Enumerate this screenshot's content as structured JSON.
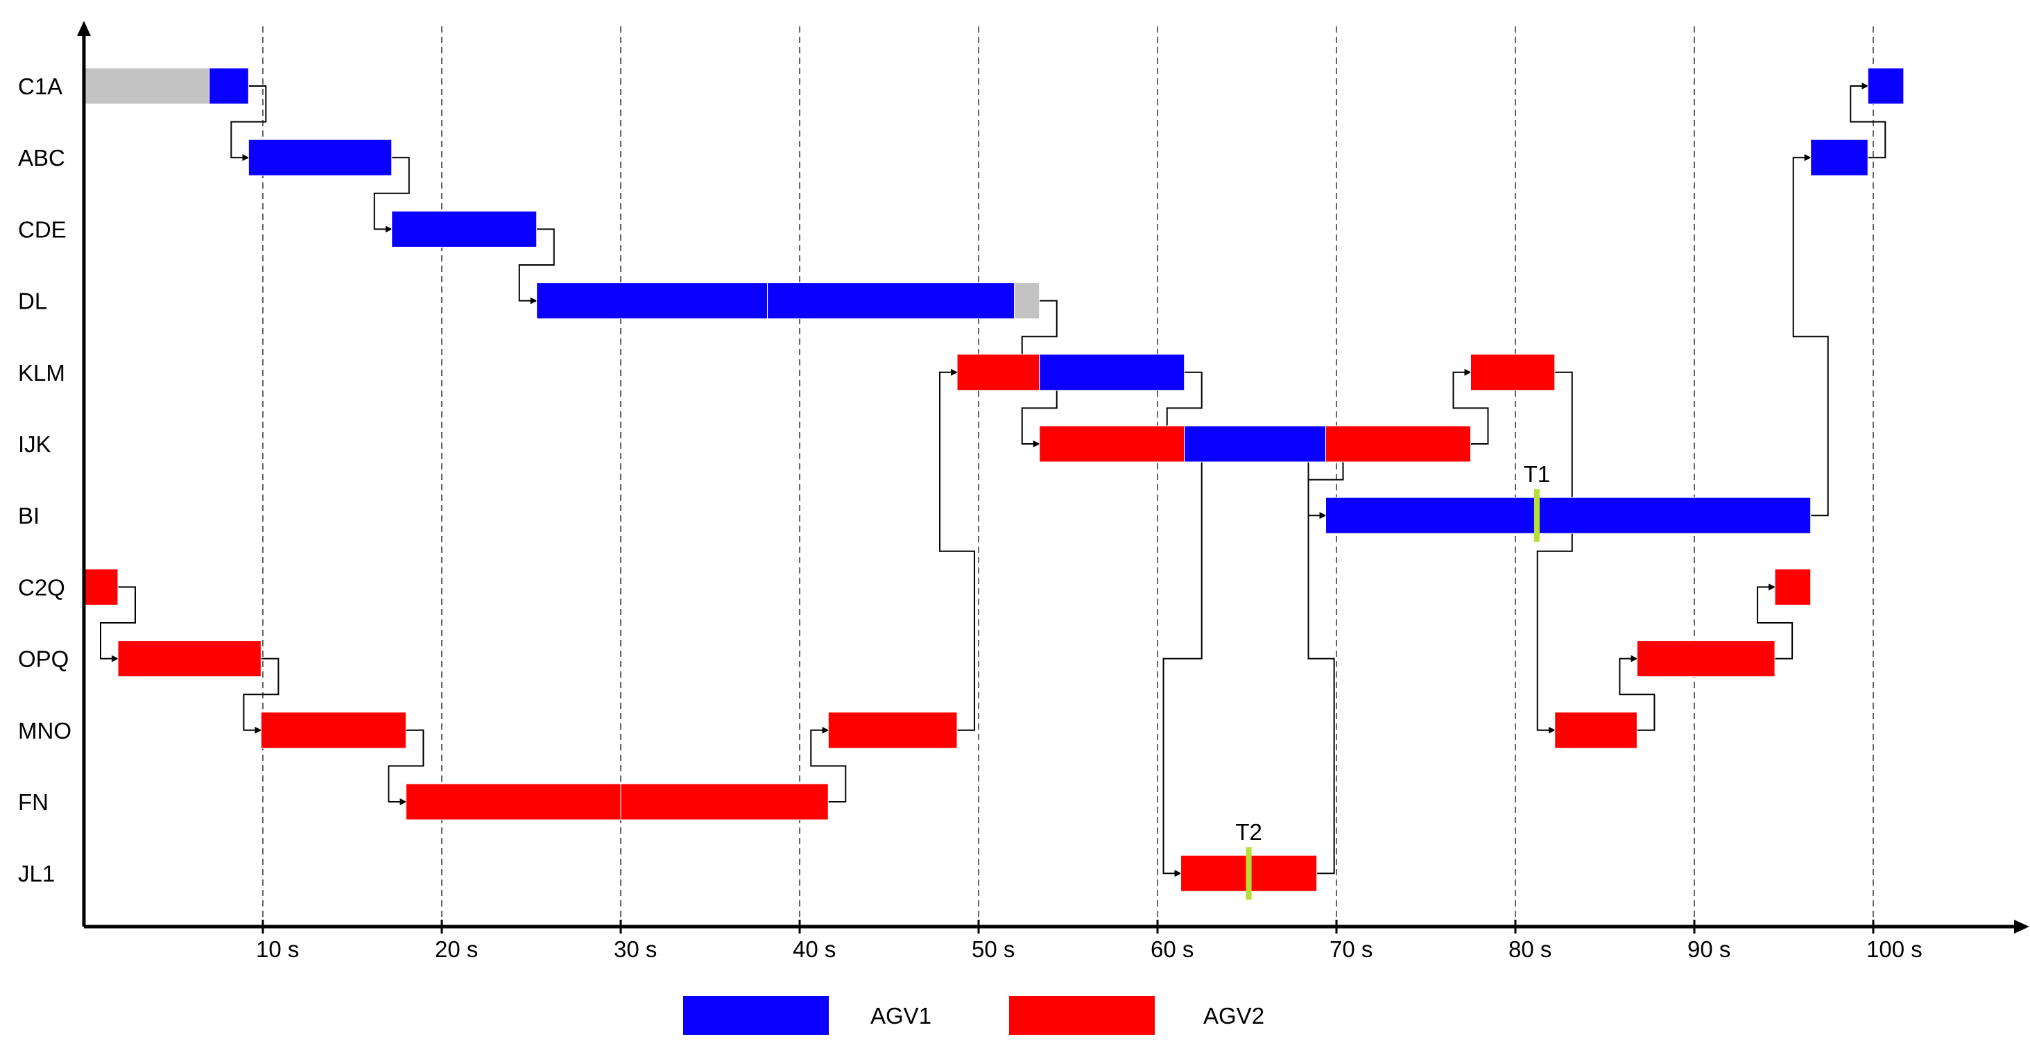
{
  "chart_data": {
    "type": "gantt",
    "title": "",
    "xlabel": "",
    "ylabel": "",
    "x_unit": "s",
    "xlim": [
      0,
      108
    ],
    "x_ticks": [
      10,
      20,
      30,
      40,
      50,
      60,
      70,
      80,
      90,
      100
    ],
    "x_tick_labels": [
      "10 s",
      "20 s",
      "30 s",
      "40 s",
      "50 s",
      "60 s",
      "70 s",
      "80 s",
      "90 s",
      "100 s"
    ],
    "grid": "vertical dashed at ticks",
    "rows": [
      "C1A",
      "ABC",
      "CDE",
      "DL",
      "KLM",
      "IJK",
      "BI",
      "C2Q",
      "OPQ",
      "MNO",
      "FN",
      "JL1"
    ],
    "colors": {
      "AGV1": "#0a00ff",
      "AGV2": "#ff0000",
      "idle": "#c3c3c3",
      "marker": "#b5e033"
    },
    "legend": {
      "position": "bottom-center",
      "items": [
        {
          "name": "AGV1",
          "color": "#0a00ff"
        },
        {
          "name": "AGV2",
          "color": "#ff0000"
        }
      ]
    },
    "bars": [
      {
        "row": "C1A",
        "agent": "idle",
        "start": 0,
        "end": 7.0
      },
      {
        "row": "C1A",
        "agent": "AGV1",
        "start": 7.0,
        "end": 9.2
      },
      {
        "row": "ABC",
        "agent": "AGV1",
        "start": 9.2,
        "end": 17.2
      },
      {
        "row": "CDE",
        "agent": "AGV1",
        "start": 17.2,
        "end": 25.3
      },
      {
        "row": "DL",
        "agent": "AGV1",
        "start": 25.3,
        "end": 38.2
      },
      {
        "row": "DL",
        "agent": "AGV1",
        "start": 38.2,
        "end": 52.0
      },
      {
        "row": "DL",
        "agent": "idle",
        "start": 52.0,
        "end": 53.4
      },
      {
        "row": "KLM",
        "agent": "AGV2",
        "start": 48.8,
        "end": 53.4
      },
      {
        "row": "KLM",
        "agent": "AGV1",
        "start": 53.4,
        "end": 61.5
      },
      {
        "row": "IJK",
        "agent": "AGV2",
        "start": 53.4,
        "end": 61.5
      },
      {
        "row": "IJK",
        "agent": "AGV1",
        "start": 61.5,
        "end": 69.4
      },
      {
        "row": "IJK",
        "agent": "AGV2",
        "start": 69.4,
        "end": 77.5
      },
      {
        "row": "KLM",
        "agent": "AGV2",
        "start": 77.5,
        "end": 82.2
      },
      {
        "row": "BI",
        "agent": "AGV1",
        "start": 69.4,
        "end": 96.5
      },
      {
        "row": "ABC",
        "agent": "AGV1",
        "start": 96.5,
        "end": 99.7
      },
      {
        "row": "C1A",
        "agent": "AGV1",
        "start": 99.7,
        "end": 101.7
      },
      {
        "row": "C2Q",
        "agent": "AGV2",
        "start": 0,
        "end": 1.9
      },
      {
        "row": "OPQ",
        "agent": "AGV2",
        "start": 1.9,
        "end": 9.9
      },
      {
        "row": "MNO",
        "agent": "AGV2",
        "start": 9.9,
        "end": 18.0
      },
      {
        "row": "FN",
        "agent": "AGV2",
        "start": 18.0,
        "end": 30.0
      },
      {
        "row": "FN",
        "agent": "AGV2",
        "start": 30.0,
        "end": 41.6
      },
      {
        "row": "MNO",
        "agent": "AGV2",
        "start": 41.6,
        "end": 48.8
      },
      {
        "row": "JL1",
        "agent": "AGV2",
        "start": 61.3,
        "end": 68.9
      },
      {
        "row": "MNO",
        "agent": "AGV2",
        "start": 82.2,
        "end": 86.8
      },
      {
        "row": "OPQ",
        "agent": "AGV2",
        "start": 86.8,
        "end": 94.5
      },
      {
        "row": "C2Q",
        "agent": "AGV2",
        "start": 94.5,
        "end": 96.5
      }
    ],
    "transitions": [
      {
        "from_row": "C1A",
        "from": 9.2,
        "to_row": "ABC",
        "to": 9.2
      },
      {
        "from_row": "ABC",
        "from": 17.2,
        "to_row": "CDE",
        "to": 17.2
      },
      {
        "from_row": "CDE",
        "from": 25.3,
        "to_row": "DL",
        "to": 25.3
      },
      {
        "from_row": "DL",
        "from": 53.4,
        "to_row": "KLM",
        "to": 53.4
      },
      {
        "from_row": "KLM",
        "from": 61.5,
        "to_row": "IJK",
        "to": 61.5
      },
      {
        "from_row": "IJK",
        "from": 69.4,
        "to_row": "BI",
        "to": 69.4
      },
      {
        "from_row": "BI",
        "from": 96.5,
        "to_row": "ABC",
        "to": 96.5
      },
      {
        "from_row": "ABC",
        "from": 99.7,
        "to_row": "C1A",
        "to": 99.7
      },
      {
        "from_row": "C2Q",
        "from": 1.9,
        "to_row": "OPQ",
        "to": 1.9
      },
      {
        "from_row": "OPQ",
        "from": 9.9,
        "to_row": "MNO",
        "to": 9.9
      },
      {
        "from_row": "MNO",
        "from": 18.0,
        "to_row": "FN",
        "to": 18.0
      },
      {
        "from_row": "FN",
        "from": 41.6,
        "to_row": "MNO",
        "to": 41.6
      },
      {
        "from_row": "MNO",
        "from": 48.8,
        "to_row": "KLM",
        "to": 48.8
      },
      {
        "from_row": "KLM",
        "from": 53.4,
        "to_row": "IJK",
        "to": 53.4
      },
      {
        "from_row": "IJK",
        "from": 61.5,
        "to_row": "JL1",
        "to": 61.3
      },
      {
        "from_row": "JL1",
        "from": 68.9,
        "to_row": "IJK",
        "to": 69.4
      },
      {
        "from_row": "IJK",
        "from": 77.5,
        "to_row": "KLM",
        "to": 77.5
      },
      {
        "from_row": "KLM",
        "from": 82.2,
        "to_row": "MNO",
        "to": 82.2
      },
      {
        "from_row": "MNO",
        "from": 86.8,
        "to_row": "OPQ",
        "to": 86.8
      },
      {
        "from_row": "OPQ",
        "from": 94.5,
        "to_row": "C2Q",
        "to": 94.5
      }
    ],
    "annotations": [
      {
        "label": "T1",
        "row": "BI",
        "x": 81.2
      },
      {
        "label": "T2",
        "row": "JL1",
        "x": 65.1
      }
    ]
  }
}
